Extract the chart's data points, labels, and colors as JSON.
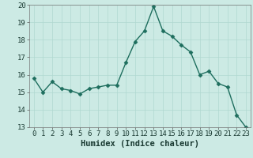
{
  "x": [
    0,
    1,
    2,
    3,
    4,
    5,
    6,
    7,
    8,
    9,
    10,
    11,
    12,
    13,
    14,
    15,
    16,
    17,
    18,
    19,
    20,
    21,
    22,
    23
  ],
  "y": [
    15.8,
    15.0,
    15.6,
    15.2,
    15.1,
    14.9,
    15.2,
    15.3,
    15.4,
    15.4,
    16.7,
    17.9,
    18.5,
    19.9,
    18.5,
    18.2,
    17.7,
    17.3,
    16.0,
    16.2,
    15.5,
    15.3,
    13.7,
    13.0
  ],
  "xlabel": "Humidex (Indice chaleur)",
  "ylim": [
    13,
    20
  ],
  "xlim_min": -0.5,
  "xlim_max": 23.5,
  "yticks": [
    13,
    14,
    15,
    16,
    17,
    18,
    19,
    20
  ],
  "xticks": [
    0,
    1,
    2,
    3,
    4,
    5,
    6,
    7,
    8,
    9,
    10,
    11,
    12,
    13,
    14,
    15,
    16,
    17,
    18,
    19,
    20,
    21,
    22,
    23
  ],
  "line_color": "#1e6e5e",
  "marker": "D",
  "marker_size": 2.5,
  "bg_color": "#cceae4",
  "plot_bg_color": "#cceae4",
  "grid_color": "#b0d8d0",
  "tick_label_fontsize": 6.5,
  "xlabel_fontsize": 7.5,
  "line_width": 1.0
}
